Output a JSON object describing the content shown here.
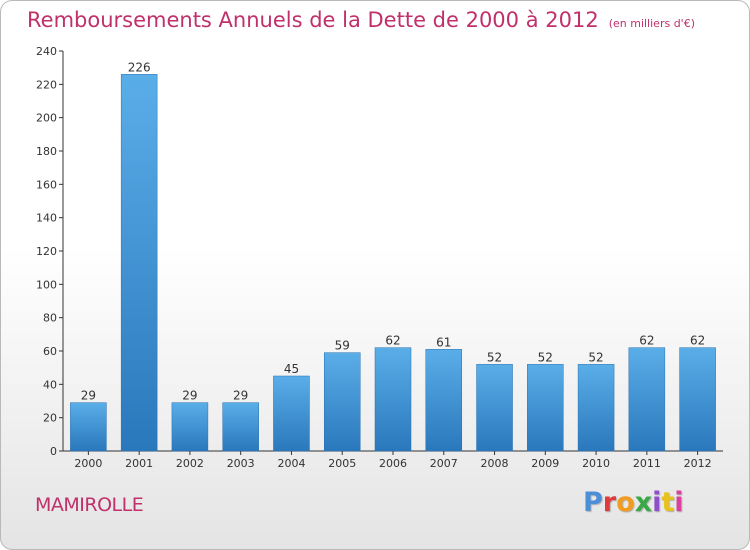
{
  "header": {
    "title": "Remboursements Annuels de la Dette de 2000 à 2012",
    "unit": "(en milliers d'€)"
  },
  "footer": {
    "commune": "MAMIROLLE",
    "brand": "Proxiti",
    "brand_colors": [
      "#4a8fd8",
      "#e03a3a",
      "#f29c1f",
      "#3aa845",
      "#8e4fc9",
      "#e8c21a",
      "#d8429a"
    ]
  },
  "colors": {
    "bar_light": "#5aaee8",
    "bar_dark": "#2a78bc",
    "title": "#c0306a",
    "axis": "#333333"
  },
  "chart_data": {
    "type": "bar",
    "title": "Remboursements Annuels de la Dette de 2000 à 2012",
    "xlabel": "",
    "ylabel": "",
    "categories": [
      "2000",
      "2001",
      "2002",
      "2003",
      "2004",
      "2005",
      "2006",
      "2007",
      "2008",
      "2009",
      "2010",
      "2011",
      "2012"
    ],
    "values": [
      29,
      226,
      29,
      29,
      45,
      59,
      62,
      61,
      52,
      52,
      52,
      62,
      62
    ],
    "data_labels": [
      "29",
      "226",
      "29",
      "29",
      "45",
      "59",
      "62",
      "61",
      "52",
      "52",
      "52",
      "62",
      "62"
    ],
    "ylim": [
      0,
      240
    ],
    "yticks": [
      0,
      20,
      40,
      60,
      80,
      100,
      120,
      140,
      160,
      180,
      200,
      220,
      240
    ],
    "grid": false,
    "legend": "none"
  }
}
